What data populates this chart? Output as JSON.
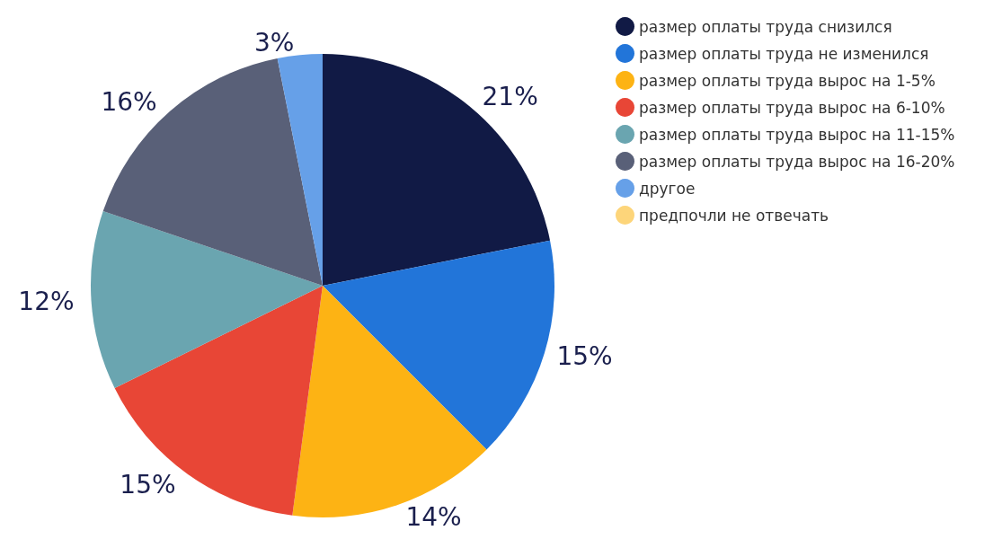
{
  "chart_data": {
    "type": "pie",
    "categories": [
      "размер оплаты труда снизился",
      "размер оплаты труда не изменился",
      "размер оплаты труда вырос на 1-5%",
      "размер оплаты труда вырос на 6-10%",
      "размер оплаты труда вырос на 11-15%",
      "размер оплаты труда вырос на 16-20%",
      "другое",
      "предпочли не отвечать"
    ],
    "values": [
      21,
      15,
      14,
      15,
      12,
      16,
      3,
      null
    ],
    "value_labels": [
      "21%",
      "15%",
      "14%",
      "15%",
      "12%",
      "16%",
      "3%",
      null
    ],
    "colors": [
      "#111a45",
      "#2275d9",
      "#fdb314",
      "#e84636",
      "#6aa5b0",
      "#596078",
      "#66a0e8",
      "#fdd57a"
    ],
    "legend": "top right"
  }
}
